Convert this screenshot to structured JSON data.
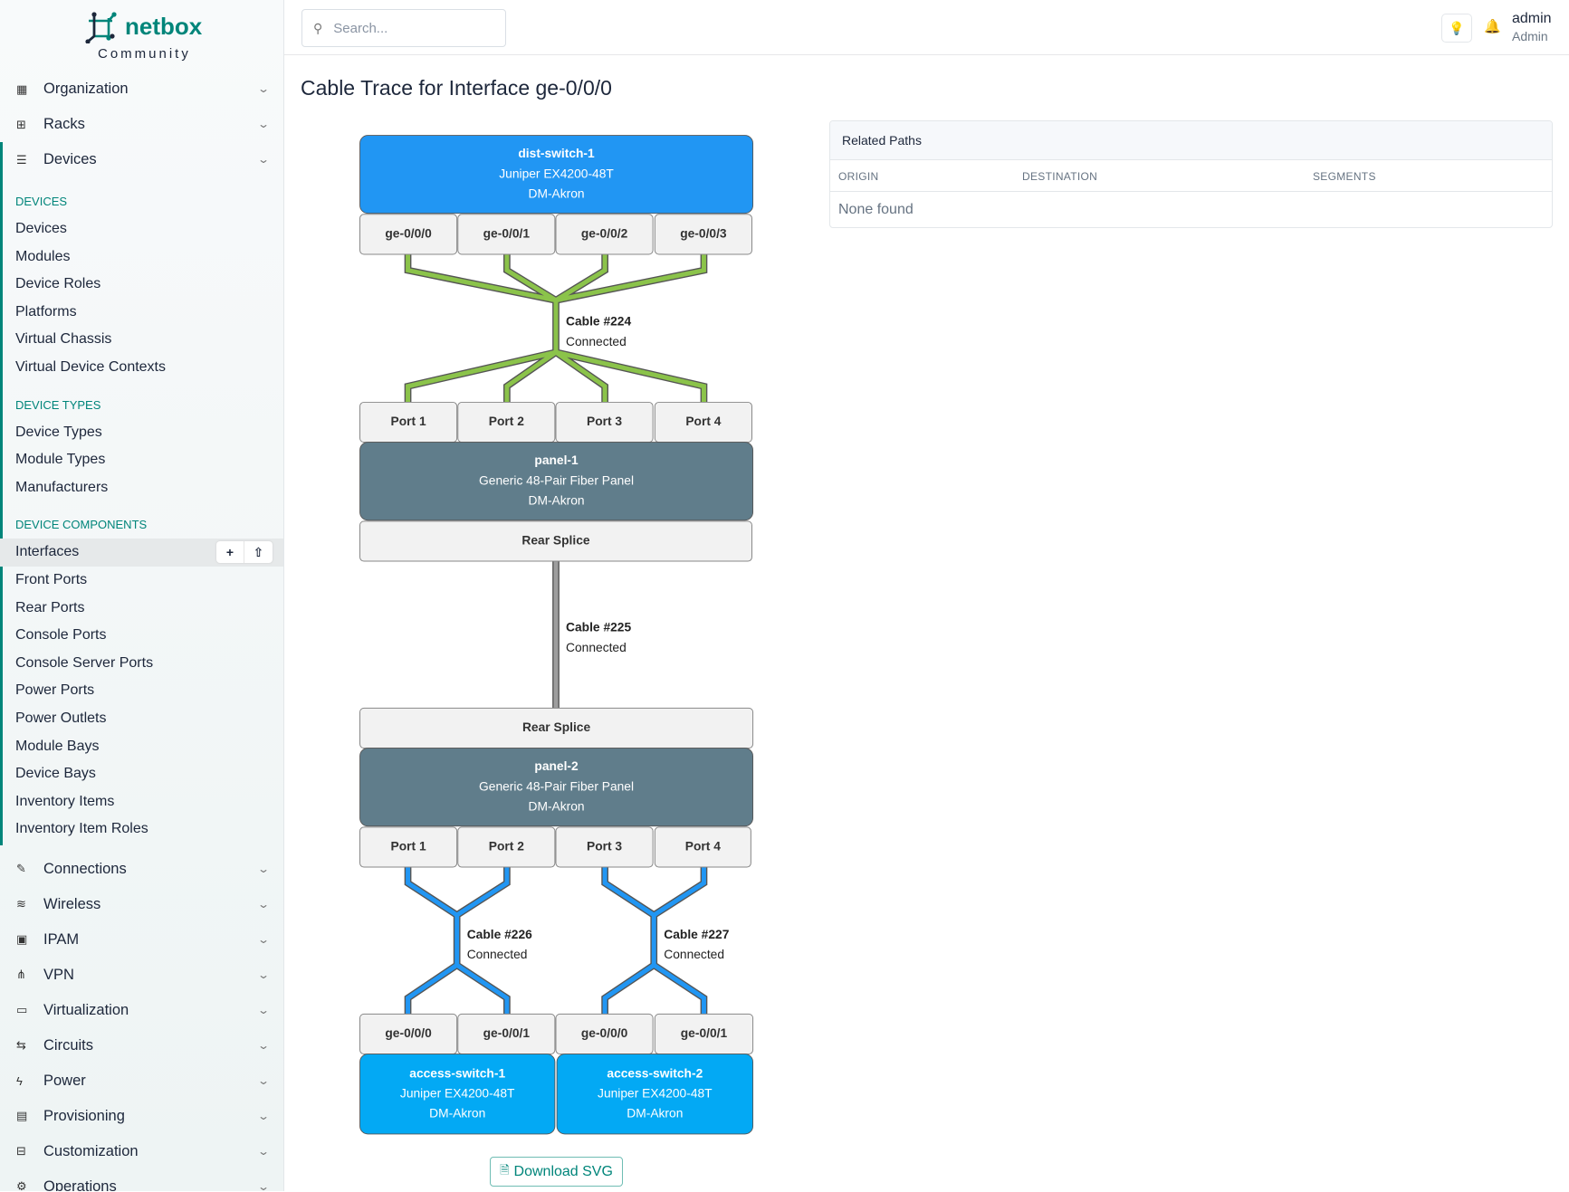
{
  "brand": {
    "name": "netbox",
    "edition": "Community"
  },
  "sidebar": {
    "top": [
      {
        "label": "Organization",
        "icon": "building-icon"
      },
      {
        "label": "Racks",
        "icon": "rack-icon"
      },
      {
        "label": "Devices",
        "icon": "server-icon"
      }
    ],
    "sections": [
      {
        "title": "DEVICES",
        "items": [
          "Devices",
          "Modules",
          "Device Roles",
          "Platforms",
          "Virtual Chassis",
          "Virtual Device Contexts"
        ]
      },
      {
        "title": "DEVICE TYPES",
        "items": [
          "Device Types",
          "Module Types",
          "Manufacturers"
        ]
      },
      {
        "title": "DEVICE COMPONENTS",
        "items": [
          "Interfaces",
          "Front Ports",
          "Rear Ports",
          "Console Ports",
          "Console Server Ports",
          "Power Ports",
          "Power Outlets",
          "Module Bays",
          "Device Bays",
          "Inventory Items",
          "Inventory Item Roles"
        ]
      }
    ],
    "active_item": "Interfaces",
    "active_buttons": {
      "add": "+",
      "import": "⇧"
    },
    "bottom": [
      {
        "label": "Connections",
        "icon": "plug-icon"
      },
      {
        "label": "Wireless",
        "icon": "wifi-icon"
      },
      {
        "label": "IPAM",
        "icon": "ip-icon"
      },
      {
        "label": "VPN",
        "icon": "vpn-icon"
      },
      {
        "label": "Virtualization",
        "icon": "monitor-icon"
      },
      {
        "label": "Circuits",
        "icon": "circuit-icon"
      },
      {
        "label": "Power",
        "icon": "bolt-icon"
      },
      {
        "label": "Provisioning",
        "icon": "file-icon"
      },
      {
        "label": "Customization",
        "icon": "toolbox-icon"
      },
      {
        "label": "Operations",
        "icon": "gears-icon"
      }
    ]
  },
  "header": {
    "search_placeholder": "Search...",
    "user": "admin",
    "role": "Admin"
  },
  "page": {
    "title": "Cable Trace for Interface ge-0/0/0",
    "download_label": "Download SVG"
  },
  "trace": {
    "dist_switch": {
      "name": "dist-switch-1",
      "type": "Juniper EX4200-48T",
      "site": "DM-Akron",
      "color": "#2196f3"
    },
    "dist_interfaces": [
      "ge-0/0/0",
      "ge-0/0/1",
      "ge-0/0/2",
      "ge-0/0/3"
    ],
    "cable_224": {
      "label": "Cable #224",
      "status": "Connected",
      "color": "#8bc34a"
    },
    "panel1_ports": [
      "Port 1",
      "Port 2",
      "Port 3",
      "Port 4"
    ],
    "panel1": {
      "name": "panel-1",
      "type": "Generic 48-Pair Fiber Panel",
      "site": "DM-Akron",
      "color": "#607d8b"
    },
    "panel1_rear": "Rear Splice",
    "cable_225": {
      "label": "Cable #225",
      "status": "Connected",
      "color": "#9e9e9e"
    },
    "panel2_rear": "Rear Splice",
    "panel2": {
      "name": "panel-2",
      "type": "Generic 48-Pair Fiber Panel",
      "site": "DM-Akron",
      "color": "#607d8b"
    },
    "panel2_ports": [
      "Port 1",
      "Port 2",
      "Port 3",
      "Port 4"
    ],
    "cable_226": {
      "label": "Cable #226",
      "status": "Connected",
      "color": "#2196f3"
    },
    "cable_227": {
      "label": "Cable #227",
      "status": "Connected",
      "color": "#2196f3"
    },
    "access_interfaces": [
      "ge-0/0/0",
      "ge-0/0/1",
      "ge-0/0/0",
      "ge-0/0/1"
    ],
    "access1": {
      "name": "access-switch-1",
      "type": "Juniper EX4200-48T",
      "site": "DM-Akron",
      "color": "#03a9f4"
    },
    "access2": {
      "name": "access-switch-2",
      "type": "Juniper EX4200-48T",
      "site": "DM-Akron",
      "color": "#03a9f4"
    }
  },
  "related": {
    "title": "Related Paths",
    "columns": [
      "ORIGIN",
      "DESTINATION",
      "SEGMENTS"
    ],
    "empty": "None found"
  }
}
